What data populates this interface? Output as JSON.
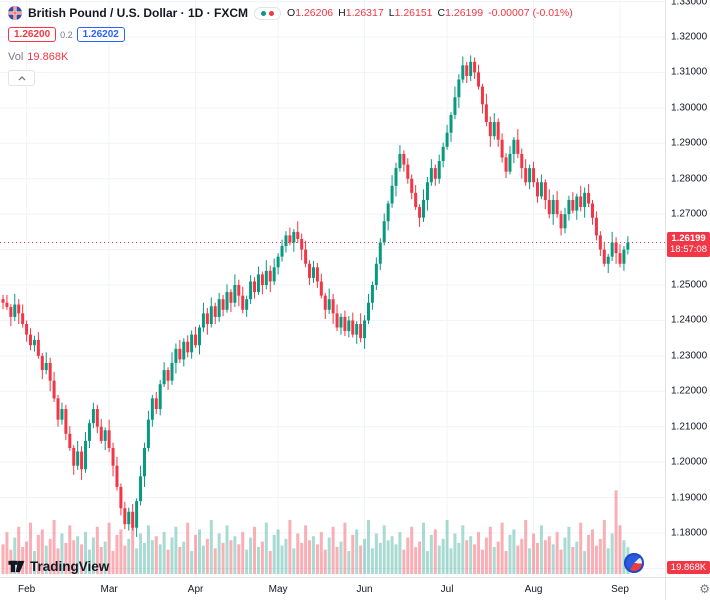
{
  "header": {
    "title": "British Pound / U.S. Dollar · 1D · FXCM",
    "ohlc": [
      {
        "label": "O",
        "value": "1.26206"
      },
      {
        "label": "H",
        "value": "1.26317"
      },
      {
        "label": "L",
        "value": "1.26151"
      },
      {
        "label": "C",
        "value": "1.26199"
      }
    ],
    "change": "-0.00007 (-0.01%)",
    "sell_price": "1.26200",
    "spread": "0.2",
    "buy_price": "1.26202",
    "vol_label": "Vol",
    "vol_value": "19.868K"
  },
  "price_axis": {
    "labels": [
      "1.33000",
      "1.32000",
      "1.31000",
      "1.30000",
      "1.29000",
      "1.28000",
      "1.27000",
      "1.26000",
      "1.25000",
      "1.24000",
      "1.23000",
      "1.22000",
      "1.21000",
      "1.20000",
      "1.19000",
      "1.18000"
    ],
    "current_price_label": "1.26199",
    "countdown": "18:57:08",
    "volume_badge": "19.868K"
  },
  "time_axis": {
    "months": [
      "Feb",
      "Mar",
      "Apr",
      "May",
      "Jun",
      "Jul",
      "Aug",
      "Sep"
    ]
  },
  "corner": {
    "gear": "⚙"
  },
  "logo": {
    "text": "TradingView"
  },
  "colors": {
    "up": "#089981",
    "down": "#f23645",
    "accent_blue": "#2962ff",
    "grid": "#f0f3fa",
    "axis_border": "#e0e3eb",
    "text": "#131722",
    "muted": "#787b86"
  },
  "chart_data": {
    "type": "candlestick",
    "title": "British Pound / U.S. Dollar",
    "interval": "1D",
    "source": "FXCM",
    "legend_note": "volume histogram overlaid at bottom",
    "y_axis": {
      "min": 1.17,
      "max": 1.333,
      "tick_step": 0.01
    },
    "x_axis": {
      "months": [
        "Feb",
        "Mar",
        "Apr",
        "May",
        "Jun",
        "Jul",
        "Aug",
        "Sep"
      ],
      "month_start_indices": [
        6,
        27,
        49,
        70,
        92,
        113,
        135,
        157
      ]
    },
    "last_bar": {
      "open": 1.26206,
      "high": 1.26317,
      "low": 1.26151,
      "close": 1.26199,
      "change": -7e-05,
      "change_pct": -0.01,
      "volume_k": 19.868
    },
    "current_price": 1.26199,
    "first_open": 1.246,
    "closes": [
      1.245,
      1.2438,
      1.241,
      1.2445,
      1.242,
      1.239,
      1.236,
      1.233,
      1.2345,
      1.23,
      1.226,
      1.228,
      1.223,
      1.218,
      1.212,
      1.215,
      1.208,
      1.204,
      1.199,
      1.203,
      1.198,
      1.206,
      1.211,
      1.215,
      1.21,
      1.206,
      1.209,
      1.204,
      1.199,
      1.193,
      1.187,
      1.1825,
      1.186,
      1.1815,
      1.189,
      1.196,
      1.204,
      1.212,
      1.218,
      1.215,
      1.222,
      1.226,
      1.223,
      1.228,
      1.232,
      1.229,
      1.234,
      1.231,
      1.236,
      1.233,
      1.238,
      1.242,
      1.239,
      1.244,
      1.241,
      1.246,
      1.243,
      1.248,
      1.245,
      1.25,
      1.247,
      1.243,
      1.246,
      1.251,
      1.248,
      1.253,
      1.25,
      1.254,
      1.251,
      1.255,
      1.258,
      1.261,
      1.264,
      1.262,
      1.265,
      1.263,
      1.26,
      1.256,
      1.252,
      1.255,
      1.251,
      1.247,
      1.243,
      1.246,
      1.242,
      1.238,
      1.241,
      1.237,
      1.24,
      1.236,
      1.239,
      1.235,
      1.24,
      1.245,
      1.25,
      1.256,
      1.262,
      1.268,
      1.273,
      1.278,
      1.283,
      1.287,
      1.284,
      1.28,
      1.276,
      1.272,
      1.269,
      1.274,
      1.279,
      1.283,
      1.28,
      1.285,
      1.289,
      1.293,
      1.298,
      1.303,
      1.308,
      1.312,
      1.309,
      1.313,
      1.31,
      1.306,
      1.301,
      1.296,
      1.292,
      1.296,
      1.291,
      1.286,
      1.282,
      1.287,
      1.291,
      1.287,
      1.283,
      1.279,
      1.283,
      1.279,
      1.275,
      1.279,
      1.274,
      1.27,
      1.274,
      1.27,
      1.266,
      1.27,
      1.274,
      1.271,
      1.275,
      1.272,
      1.276,
      1.273,
      1.269,
      1.264,
      1.26,
      1.256,
      1.258,
      1.262,
      1.259,
      1.256,
      1.26,
      1.26199
    ],
    "wick_up_pattern": [
      0.0012,
      0.0022,
      0.0008,
      0.003,
      0.0015,
      0.0025,
      0.001,
      0.0018
    ],
    "wick_down_pattern": [
      0.0018,
      0.0008,
      0.0026,
      0.0012,
      0.003,
      0.001,
      0.002,
      0.0014
    ],
    "volume_pattern_k": [
      22,
      31,
      18,
      27,
      35,
      20,
      24,
      38,
      17,
      29,
      33,
      21,
      26,
      40,
      19,
      30,
      23,
      36,
      25,
      28
    ],
    "volume_overrides": {
      "156": 62,
      "159": 19.868
    },
    "up_color": "#089981",
    "down_color": "#f23645",
    "volume_up_color": "rgba(8,153,129,0.35)",
    "volume_down_color": "rgba(242,54,69,0.40)"
  }
}
